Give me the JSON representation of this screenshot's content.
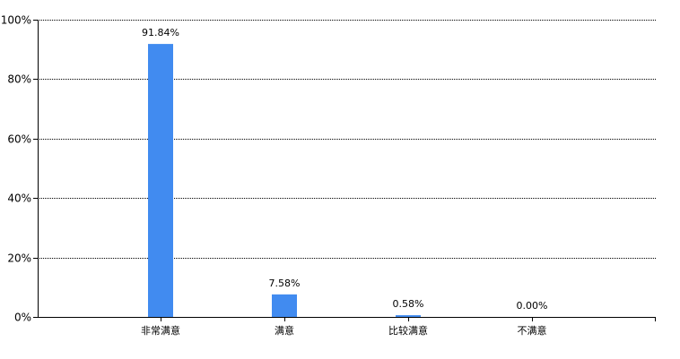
{
  "chart_data": {
    "type": "bar",
    "categories": [
      "非常满意",
      "满意",
      "比较满意",
      "不满意"
    ],
    "values": [
      91.84,
      7.58,
      0.58,
      0.0
    ],
    "data_labels": [
      "91.84%",
      "7.58%",
      "0.58%",
      "0.00%"
    ],
    "title": "",
    "xlabel": "",
    "ylabel": "",
    "ylim": [
      0,
      100
    ],
    "yticks": [
      0,
      20,
      40,
      60,
      80,
      100
    ],
    "ytick_labels": [
      "0%",
      "20%",
      "40%",
      "60%",
      "80%",
      "100%"
    ],
    "grid": true,
    "grid_style": "dotted",
    "bar_color": "#418bf0",
    "legend": "none"
  }
}
